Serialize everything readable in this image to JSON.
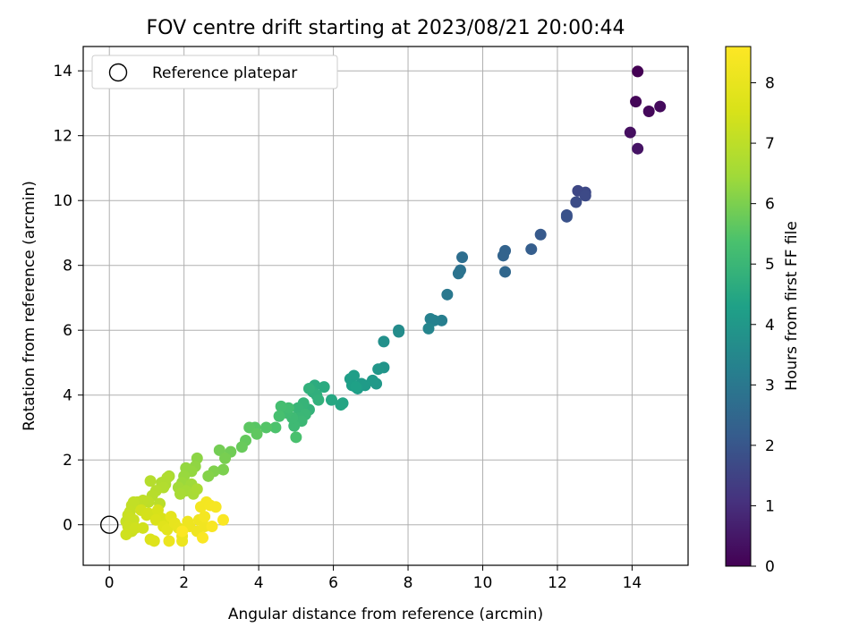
{
  "chart_data": {
    "type": "scatter",
    "title": "FOV centre drift starting at 2023/08/21 20:00:44",
    "xlabel": "Angular distance from reference (arcmin)",
    "ylabel": "Rotation from reference (arcmin)",
    "colorbar_label": "Hours from first FF file",
    "xlim": [
      -0.7,
      15.5
    ],
    "ylim": [
      -1.25,
      14.75
    ],
    "xticks": [
      0,
      2,
      4,
      6,
      8,
      10,
      12,
      14
    ],
    "yticks": [
      0,
      2,
      4,
      6,
      8,
      10,
      12,
      14
    ],
    "colorbar_ticks": [
      0,
      1,
      2,
      3,
      4,
      5,
      6,
      7,
      8
    ],
    "colorbar_range": [
      0,
      8.6
    ],
    "colormap": "viridis",
    "grid": true,
    "legend": {
      "placement": "upper-left",
      "entries": [
        "Reference platepar"
      ]
    },
    "reference_point": {
      "x": 0,
      "y": 0,
      "label": "Reference platepar"
    },
    "points": [
      [
        14.15,
        13.98,
        0.0
      ],
      [
        14.1,
        13.05,
        0.1
      ],
      [
        14.45,
        12.75,
        0.15
      ],
      [
        14.75,
        12.9,
        0.2
      ],
      [
        13.95,
        12.1,
        0.3
      ],
      [
        14.15,
        11.6,
        0.4
      ],
      [
        12.55,
        10.3,
        1.6
      ],
      [
        12.75,
        10.25,
        1.65
      ],
      [
        12.75,
        10.15,
        1.7
      ],
      [
        12.5,
        9.95,
        1.75
      ],
      [
        12.25,
        9.55,
        1.85
      ],
      [
        12.25,
        9.5,
        1.9
      ],
      [
        11.55,
        8.95,
        2.1
      ],
      [
        11.3,
        8.5,
        2.2
      ],
      [
        10.6,
        8.45,
        2.35
      ],
      [
        10.55,
        8.3,
        2.4
      ],
      [
        10.6,
        7.8,
        2.5
      ],
      [
        9.45,
        8.25,
        2.7
      ],
      [
        9.4,
        7.85,
        2.8
      ],
      [
        9.35,
        7.75,
        2.85
      ],
      [
        9.05,
        7.1,
        3.0
      ],
      [
        8.9,
        6.3,
        3.2
      ],
      [
        8.7,
        6.3,
        3.3
      ],
      [
        8.6,
        6.35,
        3.3
      ],
      [
        8.55,
        6.05,
        3.4
      ],
      [
        7.75,
        6.0,
        3.6
      ],
      [
        7.75,
        5.95,
        3.65
      ],
      [
        7.35,
        5.65,
        3.75
      ],
      [
        7.35,
        4.85,
        3.9
      ],
      [
        7.2,
        4.8,
        3.95
      ],
      [
        7.15,
        4.35,
        4.0
      ],
      [
        7.05,
        4.45,
        4.05
      ],
      [
        6.85,
        4.3,
        4.1
      ],
      [
        6.75,
        4.35,
        4.1
      ],
      [
        6.65,
        4.2,
        4.15
      ],
      [
        6.55,
        4.6,
        4.2
      ],
      [
        6.45,
        4.5,
        4.2
      ],
      [
        6.5,
        4.3,
        4.25
      ],
      [
        6.6,
        4.25,
        4.3
      ],
      [
        6.25,
        3.75,
        4.4
      ],
      [
        6.2,
        3.7,
        4.45
      ],
      [
        5.95,
        3.85,
        4.5
      ],
      [
        5.75,
        4.25,
        4.6
      ],
      [
        5.5,
        4.3,
        4.65
      ],
      [
        5.45,
        4.1,
        4.7
      ],
      [
        5.55,
        4.0,
        4.75
      ],
      [
        5.35,
        4.2,
        4.8
      ],
      [
        5.6,
        3.85,
        4.8
      ],
      [
        5.35,
        3.55,
        4.85
      ],
      [
        5.2,
        3.75,
        4.9
      ],
      [
        5.05,
        3.6,
        4.95
      ],
      [
        5.25,
        3.4,
        5.0
      ],
      [
        5.1,
        3.3,
        5.0
      ],
      [
        5.15,
        3.2,
        5.05
      ],
      [
        4.95,
        3.05,
        5.1
      ],
      [
        4.9,
        3.3,
        5.1
      ],
      [
        4.75,
        3.45,
        5.15
      ],
      [
        4.8,
        3.6,
        5.2
      ],
      [
        4.6,
        3.65,
        5.25
      ],
      [
        4.55,
        3.35,
        5.3
      ],
      [
        5.0,
        2.7,
        5.35
      ],
      [
        4.45,
        3.0,
        5.4
      ],
      [
        4.2,
        3.0,
        5.5
      ],
      [
        3.9,
        3.0,
        5.55
      ],
      [
        3.75,
        3.0,
        5.6
      ],
      [
        3.95,
        2.8,
        5.65
      ],
      [
        3.65,
        2.6,
        5.7
      ],
      [
        3.55,
        2.4,
        5.75
      ],
      [
        3.25,
        2.25,
        5.85
      ],
      [
        2.95,
        2.3,
        5.9
      ],
      [
        3.1,
        2.05,
        5.95
      ],
      [
        3.05,
        1.7,
        6.0
      ],
      [
        2.8,
        1.65,
        6.05
      ],
      [
        2.65,
        1.5,
        6.1
      ],
      [
        2.35,
        2.05,
        6.2
      ],
      [
        2.3,
        1.8,
        6.25
      ],
      [
        2.2,
        1.65,
        6.3
      ],
      [
        2.05,
        1.75,
        6.3
      ],
      [
        2.0,
        1.5,
        6.35
      ],
      [
        1.95,
        1.3,
        6.4
      ],
      [
        2.2,
        1.25,
        6.45
      ],
      [
        1.85,
        1.15,
        6.5
      ],
      [
        2.05,
        1.05,
        6.55
      ],
      [
        1.9,
        0.95,
        6.6
      ],
      [
        2.25,
        0.95,
        6.6
      ],
      [
        2.35,
        1.1,
        6.65
      ],
      [
        1.6,
        1.5,
        6.65
      ],
      [
        1.5,
        1.25,
        6.7
      ],
      [
        1.4,
        1.3,
        6.75
      ],
      [
        1.55,
        1.45,
        6.75
      ],
      [
        1.45,
        1.15,
        6.8
      ],
      [
        1.25,
        1.05,
        6.85
      ],
      [
        1.1,
        1.35,
        6.85
      ],
      [
        1.15,
        0.9,
        6.9
      ],
      [
        1.35,
        0.65,
        6.95
      ],
      [
        1.05,
        0.7,
        7.0
      ],
      [
        0.9,
        0.75,
        7.05
      ],
      [
        0.75,
        0.7,
        7.05
      ],
      [
        0.65,
        0.7,
        7.1
      ],
      [
        0.6,
        0.6,
        7.1
      ],
      [
        0.55,
        0.4,
        7.15
      ],
      [
        0.5,
        0.3,
        7.2
      ],
      [
        0.45,
        0.1,
        7.2
      ],
      [
        0.55,
        0.2,
        7.25
      ],
      [
        0.65,
        0.15,
        7.25
      ],
      [
        0.5,
        -0.05,
        7.3
      ],
      [
        0.6,
        -0.2,
        7.3
      ],
      [
        0.45,
        -0.3,
        7.35
      ],
      [
        0.7,
        -0.1,
        7.35
      ],
      [
        0.9,
        -0.1,
        7.4
      ],
      [
        0.85,
        0.45,
        7.4
      ],
      [
        1.0,
        0.3,
        7.45
      ],
      [
        1.05,
        0.35,
        7.45
      ],
      [
        1.3,
        0.45,
        7.5
      ],
      [
        1.4,
        0.2,
        7.55
      ],
      [
        1.55,
        0.1,
        7.6
      ],
      [
        1.25,
        0.15,
        7.6
      ],
      [
        1.1,
        -0.45,
        7.65
      ],
      [
        1.2,
        -0.5,
        7.7
      ],
      [
        1.45,
        -0.05,
        7.8
      ],
      [
        1.55,
        -0.15,
        7.85
      ],
      [
        1.65,
        0.25,
        7.9
      ],
      [
        1.75,
        0.05,
        7.95
      ],
      [
        1.85,
        -0.1,
        8.0
      ],
      [
        1.95,
        -0.35,
        8.05
      ],
      [
        1.95,
        -0.5,
        8.1
      ],
      [
        1.6,
        -0.5,
        8.1
      ],
      [
        2.1,
        0.1,
        8.15
      ],
      [
        2.15,
        -0.05,
        8.15
      ],
      [
        2.35,
        -0.2,
        8.2
      ],
      [
        2.4,
        0.15,
        8.2
      ],
      [
        2.55,
        -0.05,
        8.25
      ],
      [
        2.45,
        0.55,
        8.3
      ],
      [
        2.6,
        0.7,
        8.3
      ],
      [
        2.55,
        0.25,
        8.35
      ],
      [
        2.7,
        0.6,
        8.35
      ],
      [
        2.85,
        0.55,
        8.4
      ],
      [
        2.75,
        -0.05,
        8.45
      ],
      [
        3.05,
        0.15,
        8.5
      ],
      [
        2.5,
        -0.4,
        8.5
      ],
      [
        1.95,
        -0.2,
        8.55
      ]
    ]
  }
}
